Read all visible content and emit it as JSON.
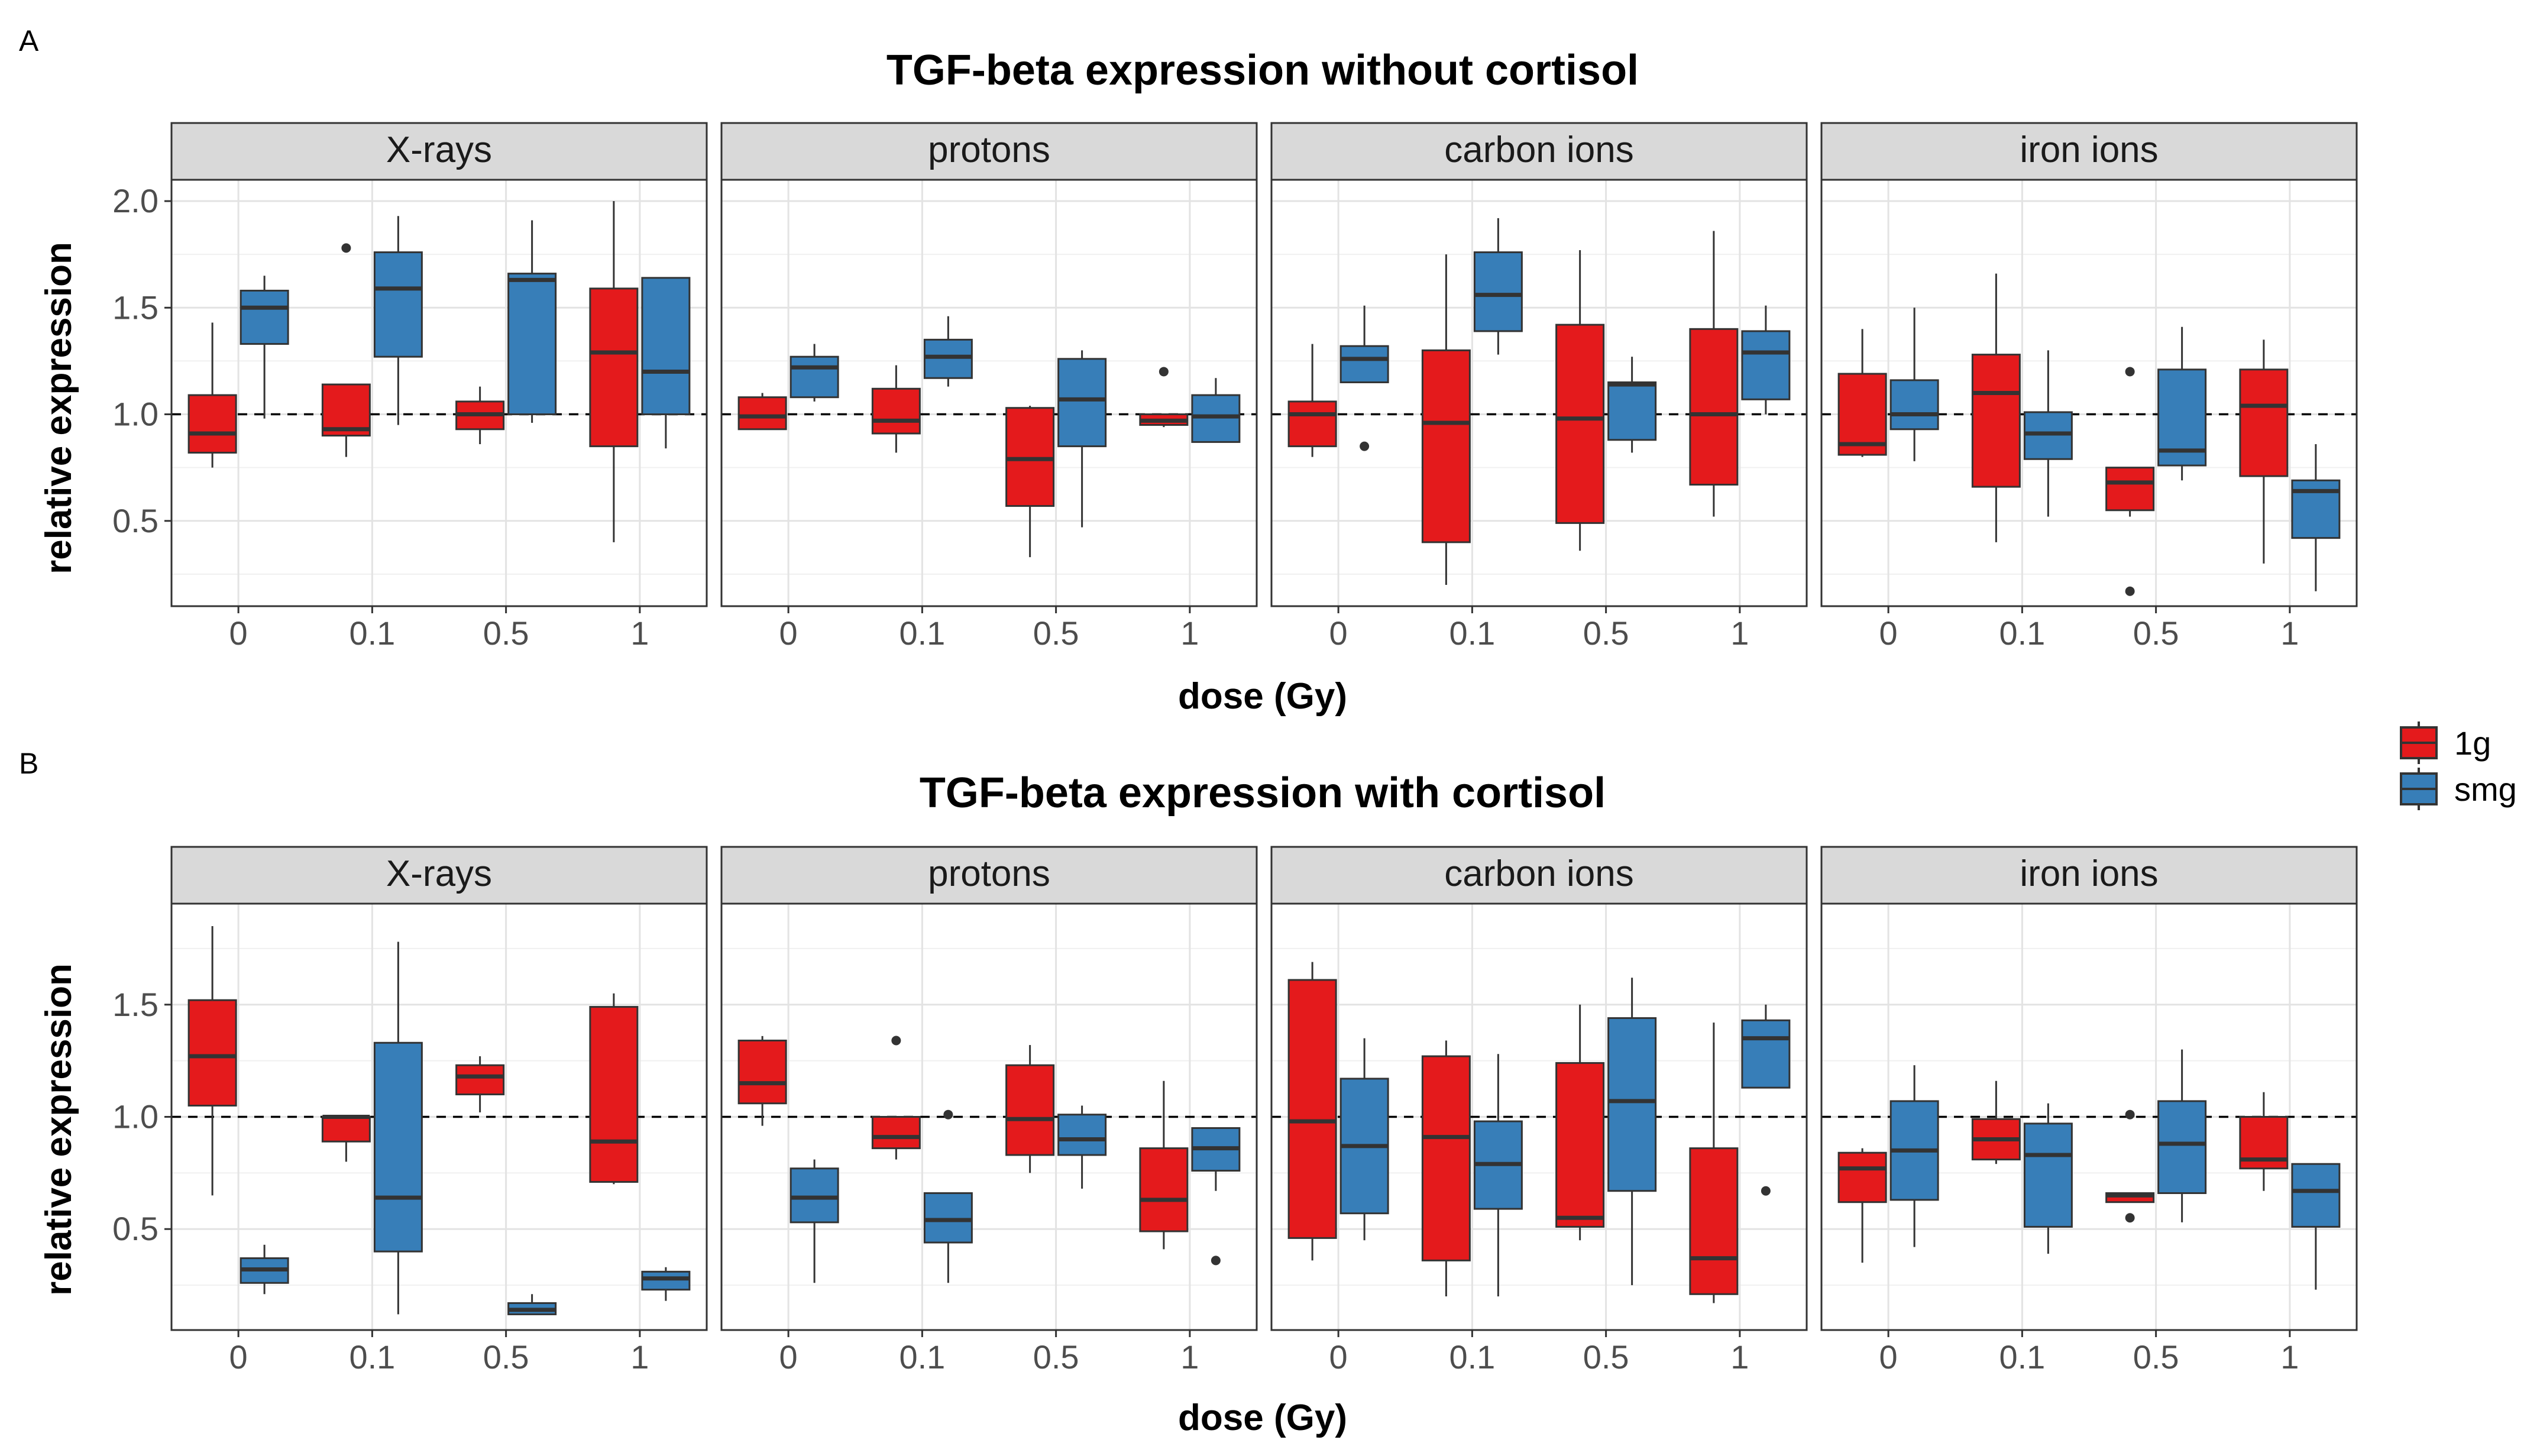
{
  "legend": {
    "items": [
      {
        "label": "1g",
        "color": "#e41a1c"
      },
      {
        "label": "smg",
        "color": "#377eb8"
      }
    ]
  },
  "chart_data": [
    {
      "type": "boxplot",
      "panel_label": "A",
      "title": "TGF-beta expression without cortisol",
      "xlabel": "dose (Gy)",
      "ylabel": "relative expression",
      "ylim": [
        0.1,
        2.1
      ],
      "yticks": [
        0.5,
        1.0,
        1.5,
        2.0
      ],
      "ytick_labels": [
        "0.5",
        "1.0",
        "1.5",
        "2.0"
      ],
      "reference_line": 1.0,
      "categories": [
        "0",
        "0.1",
        "0.5",
        "1"
      ],
      "facets": [
        {
          "name": "X-rays",
          "boxes": [
            {
              "dose": "0",
              "group": "1g",
              "min": 0.75,
              "q1": 0.82,
              "median": 0.91,
              "q3": 1.09,
              "max": 1.43,
              "outliers": []
            },
            {
              "dose": "0",
              "group": "smg",
              "min": 0.98,
              "q1": 1.33,
              "median": 1.5,
              "q3": 1.58,
              "max": 1.65,
              "outliers": []
            },
            {
              "dose": "0.1",
              "group": "1g",
              "min": 0.8,
              "q1": 0.9,
              "median": 0.93,
              "q3": 1.14,
              "max": 1.14,
              "outliers": [
                1.78
              ]
            },
            {
              "dose": "0.1",
              "group": "smg",
              "min": 0.95,
              "q1": 1.27,
              "median": 1.59,
              "q3": 1.76,
              "max": 1.93,
              "outliers": []
            },
            {
              "dose": "0.5",
              "group": "1g",
              "min": 0.86,
              "q1": 0.93,
              "median": 1.0,
              "q3": 1.06,
              "max": 1.13,
              "outliers": []
            },
            {
              "dose": "0.5",
              "group": "smg",
              "min": 0.96,
              "q1": 1.0,
              "median": 1.63,
              "q3": 1.66,
              "max": 1.91,
              "outliers": []
            },
            {
              "dose": "1",
              "group": "1g",
              "min": 0.4,
              "q1": 0.85,
              "median": 1.29,
              "q3": 1.59,
              "max": 2.0,
              "outliers": []
            },
            {
              "dose": "1",
              "group": "smg",
              "min": 0.84,
              "q1": 1.0,
              "median": 1.2,
              "q3": 1.64,
              "max": 1.64,
              "outliers": []
            }
          ]
        },
        {
          "name": "protons",
          "boxes": [
            {
              "dose": "0",
              "group": "1g",
              "min": 0.93,
              "q1": 0.93,
              "median": 0.99,
              "q3": 1.08,
              "max": 1.1,
              "outliers": []
            },
            {
              "dose": "0",
              "group": "smg",
              "min": 1.06,
              "q1": 1.08,
              "median": 1.22,
              "q3": 1.27,
              "max": 1.33,
              "outliers": []
            },
            {
              "dose": "0.1",
              "group": "1g",
              "min": 0.82,
              "q1": 0.91,
              "median": 0.97,
              "q3": 1.12,
              "max": 1.23,
              "outliers": []
            },
            {
              "dose": "0.1",
              "group": "smg",
              "min": 1.13,
              "q1": 1.17,
              "median": 1.27,
              "q3": 1.35,
              "max": 1.46,
              "outliers": []
            },
            {
              "dose": "0.5",
              "group": "1g",
              "min": 0.33,
              "q1": 0.57,
              "median": 0.79,
              "q3": 1.03,
              "max": 1.04,
              "outliers": []
            },
            {
              "dose": "0.5",
              "group": "smg",
              "min": 0.47,
              "q1": 0.85,
              "median": 1.07,
              "q3": 1.26,
              "max": 1.3,
              "outliers": []
            },
            {
              "dose": "1",
              "group": "1g",
              "min": 0.94,
              "q1": 0.95,
              "median": 0.97,
              "q3": 1.0,
              "max": 1.0,
              "outliers": [
                1.2
              ]
            },
            {
              "dose": "1",
              "group": "smg",
              "min": 0.87,
              "q1": 0.87,
              "median": 0.99,
              "q3": 1.09,
              "max": 1.17,
              "outliers": []
            }
          ]
        },
        {
          "name": "carbon ions",
          "boxes": [
            {
              "dose": "0",
              "group": "1g",
              "min": 0.8,
              "q1": 0.85,
              "median": 1.0,
              "q3": 1.06,
              "max": 1.33,
              "outliers": []
            },
            {
              "dose": "0",
              "group": "smg",
              "min": 1.15,
              "q1": 1.15,
              "median": 1.26,
              "q3": 1.32,
              "max": 1.51,
              "outliers": [
                0.85
              ]
            },
            {
              "dose": "0.1",
              "group": "1g",
              "min": 0.2,
              "q1": 0.4,
              "median": 0.96,
              "q3": 1.3,
              "max": 1.75,
              "outliers": []
            },
            {
              "dose": "0.1",
              "group": "smg",
              "min": 1.28,
              "q1": 1.39,
              "median": 1.56,
              "q3": 1.76,
              "max": 1.92,
              "outliers": []
            },
            {
              "dose": "0.5",
              "group": "1g",
              "min": 0.36,
              "q1": 0.49,
              "median": 0.98,
              "q3": 1.42,
              "max": 1.77,
              "outliers": []
            },
            {
              "dose": "0.5",
              "group": "smg",
              "min": 0.82,
              "q1": 0.88,
              "median": 1.14,
              "q3": 1.15,
              "max": 1.27,
              "outliers": []
            },
            {
              "dose": "1",
              "group": "1g",
              "min": 0.52,
              "q1": 0.67,
              "median": 1.0,
              "q3": 1.4,
              "max": 1.86,
              "outliers": []
            },
            {
              "dose": "1",
              "group": "smg",
              "min": 1.0,
              "q1": 1.07,
              "median": 1.29,
              "q3": 1.39,
              "max": 1.51,
              "outliers": []
            }
          ]
        },
        {
          "name": "iron ions",
          "boxes": [
            {
              "dose": "0",
              "group": "1g",
              "min": 0.8,
              "q1": 0.81,
              "median": 0.86,
              "q3": 1.19,
              "max": 1.4,
              "outliers": []
            },
            {
              "dose": "0",
              "group": "smg",
              "min": 0.78,
              "q1": 0.93,
              "median": 1.0,
              "q3": 1.16,
              "max": 1.5,
              "outliers": []
            },
            {
              "dose": "0.1",
              "group": "1g",
              "min": 0.4,
              "q1": 0.66,
              "median": 1.1,
              "q3": 1.28,
              "max": 1.66,
              "outliers": []
            },
            {
              "dose": "0.1",
              "group": "smg",
              "min": 0.52,
              "q1": 0.79,
              "median": 0.91,
              "q3": 1.01,
              "max": 1.3,
              "outliers": []
            },
            {
              "dose": "0.5",
              "group": "1g",
              "min": 0.52,
              "q1": 0.55,
              "median": 0.68,
              "q3": 0.75,
              "max": 0.75,
              "outliers": [
                1.2,
                0.17
              ]
            },
            {
              "dose": "0.5",
              "group": "smg",
              "min": 0.69,
              "q1": 0.76,
              "median": 0.83,
              "q3": 1.21,
              "max": 1.41,
              "outliers": []
            },
            {
              "dose": "1",
              "group": "1g",
              "min": 0.3,
              "q1": 0.71,
              "median": 1.04,
              "q3": 1.21,
              "max": 1.35,
              "outliers": []
            },
            {
              "dose": "1",
              "group": "smg",
              "min": 0.17,
              "q1": 0.42,
              "median": 0.64,
              "q3": 0.69,
              "max": 0.86,
              "outliers": []
            }
          ]
        }
      ]
    },
    {
      "type": "boxplot",
      "panel_label": "B",
      "title": "TGF-beta expression with cortisol",
      "xlabel": "dose (Gy)",
      "ylabel": "relative expression",
      "ylim": [
        0.05,
        1.95
      ],
      "yticks": [
        0.5,
        1.0,
        1.5
      ],
      "ytick_labels": [
        "0.5",
        "1.0",
        "1.5"
      ],
      "reference_line": 1.0,
      "categories": [
        "0",
        "0.1",
        "0.5",
        "1"
      ],
      "facets": [
        {
          "name": "X-rays",
          "boxes": [
            {
              "dose": "0",
              "group": "1g",
              "min": 0.65,
              "q1": 1.05,
              "median": 1.27,
              "q3": 1.52,
              "max": 1.85,
              "outliers": []
            },
            {
              "dose": "0",
              "group": "smg",
              "min": 0.21,
              "q1": 0.26,
              "median": 0.32,
              "q3": 0.37,
              "max": 0.43,
              "outliers": []
            },
            {
              "dose": "0.1",
              "group": "1g",
              "min": 0.8,
              "q1": 0.89,
              "median": 1.0,
              "q3": 1.0,
              "max": 1.0,
              "outliers": []
            },
            {
              "dose": "0.1",
              "group": "smg",
              "min": 0.12,
              "q1": 0.4,
              "median": 0.64,
              "q3": 1.33,
              "max": 1.78,
              "outliers": []
            },
            {
              "dose": "0.5",
              "group": "1g",
              "min": 1.02,
              "q1": 1.1,
              "median": 1.18,
              "q3": 1.23,
              "max": 1.27,
              "outliers": []
            },
            {
              "dose": "0.5",
              "group": "smg",
              "min": 0.12,
              "q1": 0.12,
              "median": 0.14,
              "q3": 0.17,
              "max": 0.21,
              "outliers": []
            },
            {
              "dose": "1",
              "group": "1g",
              "min": 0.7,
              "q1": 0.71,
              "median": 0.89,
              "q3": 1.49,
              "max": 1.55,
              "outliers": []
            },
            {
              "dose": "1",
              "group": "smg",
              "min": 0.18,
              "q1": 0.23,
              "median": 0.28,
              "q3": 0.31,
              "max": 0.33,
              "outliers": []
            }
          ]
        },
        {
          "name": "protons",
          "boxes": [
            {
              "dose": "0",
              "group": "1g",
              "min": 0.96,
              "q1": 1.06,
              "median": 1.15,
              "q3": 1.34,
              "max": 1.36,
              "outliers": []
            },
            {
              "dose": "0",
              "group": "smg",
              "min": 0.26,
              "q1": 0.53,
              "median": 0.64,
              "q3": 0.77,
              "max": 0.81,
              "outliers": []
            },
            {
              "dose": "0.1",
              "group": "1g",
              "min": 0.81,
              "q1": 0.86,
              "median": 0.91,
              "q3": 1.0,
              "max": 1.0,
              "outliers": [
                1.34
              ]
            },
            {
              "dose": "0.1",
              "group": "smg",
              "min": 0.26,
              "q1": 0.44,
              "median": 0.54,
              "q3": 0.66,
              "max": 0.66,
              "outliers": [
                1.01
              ]
            },
            {
              "dose": "0.5",
              "group": "1g",
              "min": 0.75,
              "q1": 0.83,
              "median": 0.99,
              "q3": 1.23,
              "max": 1.32,
              "outliers": []
            },
            {
              "dose": "0.5",
              "group": "smg",
              "min": 0.68,
              "q1": 0.83,
              "median": 0.9,
              "q3": 1.01,
              "max": 1.05,
              "outliers": []
            },
            {
              "dose": "1",
              "group": "1g",
              "min": 0.41,
              "q1": 0.49,
              "median": 0.63,
              "q3": 0.86,
              "max": 1.16,
              "outliers": []
            },
            {
              "dose": "1",
              "group": "smg",
              "min": 0.67,
              "q1": 0.76,
              "median": 0.86,
              "q3": 0.95,
              "max": 0.95,
              "outliers": [
                0.36
              ]
            }
          ]
        },
        {
          "name": "carbon ions",
          "boxes": [
            {
              "dose": "0",
              "group": "1g",
              "min": 0.36,
              "q1": 0.46,
              "median": 0.98,
              "q3": 1.61,
              "max": 1.69,
              "outliers": []
            },
            {
              "dose": "0",
              "group": "smg",
              "min": 0.45,
              "q1": 0.57,
              "median": 0.87,
              "q3": 1.17,
              "max": 1.35,
              "outliers": []
            },
            {
              "dose": "0.1",
              "group": "1g",
              "min": 0.2,
              "q1": 0.36,
              "median": 0.91,
              "q3": 1.27,
              "max": 1.34,
              "outliers": []
            },
            {
              "dose": "0.1",
              "group": "smg",
              "min": 0.2,
              "q1": 0.59,
              "median": 0.79,
              "q3": 0.98,
              "max": 1.28,
              "outliers": []
            },
            {
              "dose": "0.5",
              "group": "1g",
              "min": 0.45,
              "q1": 0.51,
              "median": 0.55,
              "q3": 1.24,
              "max": 1.5,
              "outliers": []
            },
            {
              "dose": "0.5",
              "group": "smg",
              "min": 0.25,
              "q1": 0.67,
              "median": 1.07,
              "q3": 1.44,
              "max": 1.62,
              "outliers": []
            },
            {
              "dose": "1",
              "group": "1g",
              "min": 0.17,
              "q1": 0.21,
              "median": 0.37,
              "q3": 0.86,
              "max": 1.42,
              "outliers": []
            },
            {
              "dose": "1",
              "group": "smg",
              "min": 1.13,
              "q1": 1.13,
              "median": 1.35,
              "q3": 1.43,
              "max": 1.5,
              "outliers": [
                0.67
              ]
            }
          ]
        },
        {
          "name": "iron ions",
          "boxes": [
            {
              "dose": "0",
              "group": "1g",
              "min": 0.35,
              "q1": 0.62,
              "median": 0.77,
              "q3": 0.84,
              "max": 0.86,
              "outliers": []
            },
            {
              "dose": "0",
              "group": "smg",
              "min": 0.42,
              "q1": 0.63,
              "median": 0.85,
              "q3": 1.07,
              "max": 1.23,
              "outliers": []
            },
            {
              "dose": "0.1",
              "group": "1g",
              "min": 0.79,
              "q1": 0.81,
              "median": 0.9,
              "q3": 0.99,
              "max": 1.16,
              "outliers": []
            },
            {
              "dose": "0.1",
              "group": "smg",
              "min": 0.39,
              "q1": 0.51,
              "median": 0.83,
              "q3": 0.97,
              "max": 1.06,
              "outliers": []
            },
            {
              "dose": "0.5",
              "group": "1g",
              "min": 0.62,
              "q1": 0.62,
              "median": 0.65,
              "q3": 0.66,
              "max": 0.66,
              "outliers": [
                1.01,
                0.55
              ]
            },
            {
              "dose": "0.5",
              "group": "smg",
              "min": 0.53,
              "q1": 0.66,
              "median": 0.88,
              "q3": 1.07,
              "max": 1.3,
              "outliers": []
            },
            {
              "dose": "1",
              "group": "1g",
              "min": 0.67,
              "q1": 0.77,
              "median": 0.81,
              "q3": 1.0,
              "max": 1.11,
              "outliers": []
            },
            {
              "dose": "1",
              "group": "smg",
              "min": 0.23,
              "q1": 0.51,
              "median": 0.67,
              "q3": 0.79,
              "max": 0.79,
              "outliers": []
            }
          ]
        }
      ]
    }
  ]
}
